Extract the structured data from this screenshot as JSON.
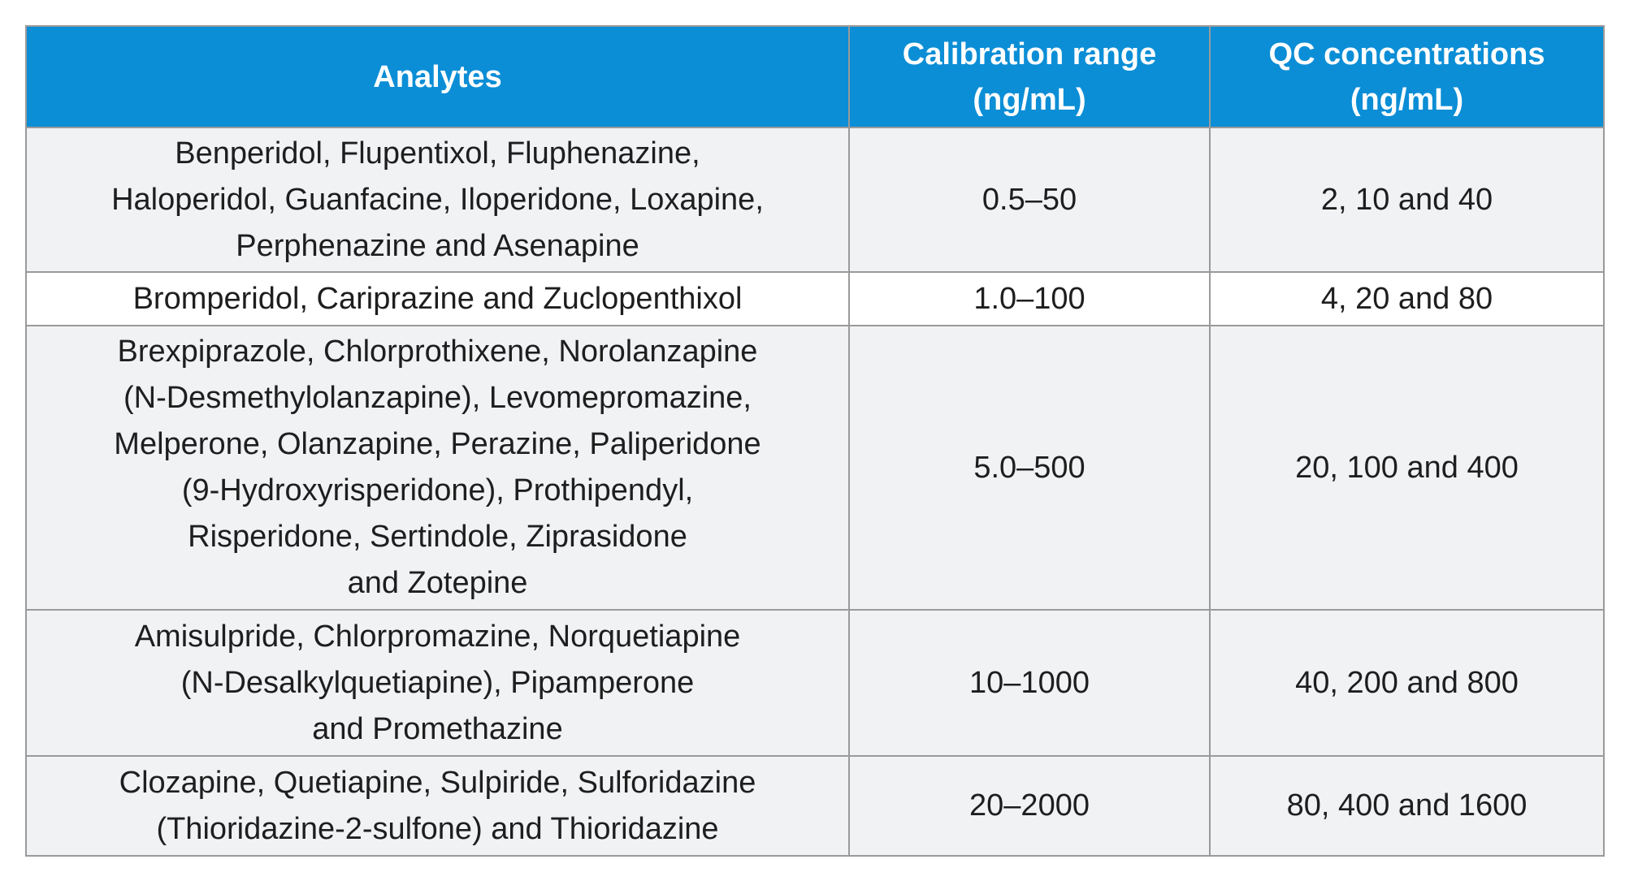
{
  "table": {
    "headers": {
      "analytes": "Analytes",
      "calibration_range": [
        "Calibration range",
        "(ng/mL)"
      ],
      "qc_concentrations": [
        "QC concentrations",
        "(ng/mL)"
      ]
    },
    "rows": [
      {
        "analytes": [
          "Benperidol, Flupentixol, Fluphenazine,",
          "Haloperidol, Guanfacine, Iloperidone, Loxapine,",
          "Perphenazine and Asenapine"
        ],
        "calibration_range": "0.5–50",
        "qc_concentrations": "2, 10 and 40"
      },
      {
        "analytes": [
          "Bromperidol, Cariprazine and Zuclopenthixol"
        ],
        "calibration_range": "1.0–100",
        "qc_concentrations": "4, 20 and 80"
      },
      {
        "analytes": [
          "Brexpiprazole, Chlorprothixene, Norolanzapine",
          "(N-Desmethylolanzapine), Levomepromazine,",
          "Melperone, Olanzapine, Perazine, Paliperidone",
          "(9-Hydroxyrisperidone), Prothipendyl,",
          "Risperidone, Sertindole, Ziprasidone",
          "and Zotepine"
        ],
        "calibration_range": "5.0–500",
        "qc_concentrations": "20, 100 and 400"
      },
      {
        "analytes": [
          "Amisulpride, Chlorpromazine, Norquetiapine",
          "(N-Desalkylquetiapine), Pipamperone",
          "and Promethazine"
        ],
        "calibration_range": "10–1000",
        "qc_concentrations": "40, 200 and 800"
      },
      {
        "analytes": [
          "Clozapine, Quetiapine, Sulpiride, Sulforidazine",
          "(Thioridazine-2-sulfone) and Thioridazine"
        ],
        "calibration_range": "20–2000",
        "qc_concentrations": "80, 400 and 1600"
      }
    ]
  }
}
